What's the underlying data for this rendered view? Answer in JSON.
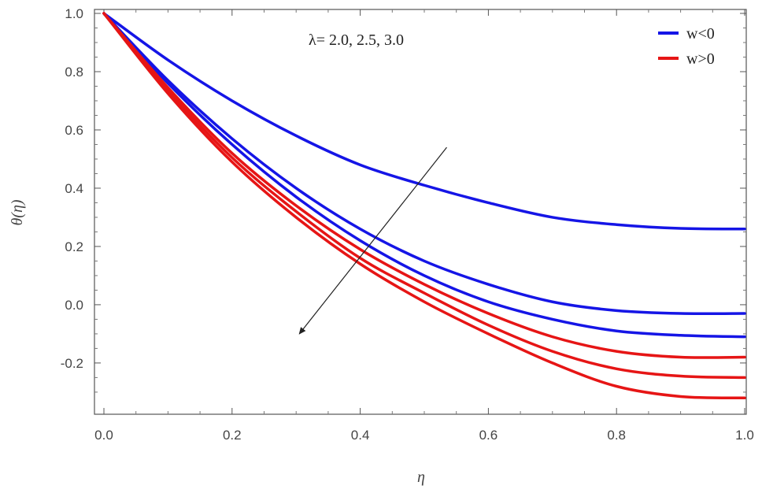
{
  "chart_data": {
    "type": "line",
    "xlabel": "η",
    "ylabel": "θ(η)",
    "xlim": [
      0.0,
      1.0
    ],
    "ylim": [
      -0.33,
      1.0
    ],
    "x_ticks": [
      "0.0",
      "0.2",
      "0.4",
      "0.6",
      "0.8",
      "1.0"
    ],
    "y_ticks": [
      "1.0",
      "0.8",
      "0.6",
      "0.4",
      "0.2",
      "0.0",
      "-0.2"
    ],
    "annotation": "λ= 2.0, 2.5, 3.0",
    "legend_position": "top-right",
    "legend": [
      {
        "label": "w<0",
        "color": "#1515e6"
      },
      {
        "label": "w>0",
        "color": "#e61515"
      }
    ],
    "x": [
      0.0,
      0.1,
      0.2,
      0.3,
      0.4,
      0.5,
      0.6,
      0.7,
      0.8,
      0.9,
      1.0
    ],
    "series": [
      {
        "group": "w<0",
        "color": "#1515e6",
        "values": [
          1.0,
          0.84,
          0.7,
          0.58,
          0.48,
          0.41,
          0.35,
          0.3,
          0.275,
          0.262,
          0.26
        ]
      },
      {
        "group": "w<0",
        "color": "#1515e6",
        "values": [
          1.0,
          0.77,
          0.57,
          0.4,
          0.26,
          0.15,
          0.07,
          0.01,
          -0.02,
          -0.03,
          -0.03
        ]
      },
      {
        "group": "w<0",
        "color": "#1515e6",
        "values": [
          1.0,
          0.76,
          0.55,
          0.37,
          0.22,
          0.1,
          0.01,
          -0.05,
          -0.09,
          -0.105,
          -0.11
        ]
      },
      {
        "group": "w>0",
        "color": "#e61515",
        "values": [
          1.0,
          0.745,
          0.52,
          0.34,
          0.19,
          0.07,
          -0.03,
          -0.11,
          -0.16,
          -0.18,
          -0.18
        ]
      },
      {
        "group": "w>0",
        "color": "#e61515",
        "values": [
          1.0,
          0.735,
          0.505,
          0.32,
          0.16,
          0.04,
          -0.07,
          -0.16,
          -0.22,
          -0.245,
          -0.25
        ]
      },
      {
        "group": "w>0",
        "color": "#e61515",
        "values": [
          1.0,
          0.725,
          0.49,
          0.3,
          0.14,
          0.01,
          -0.1,
          -0.2,
          -0.28,
          -0.315,
          -0.32
        ]
      }
    ],
    "arrow": {
      "from": [
        0.535,
        0.54
      ],
      "to": [
        0.305,
        -0.1
      ]
    }
  }
}
